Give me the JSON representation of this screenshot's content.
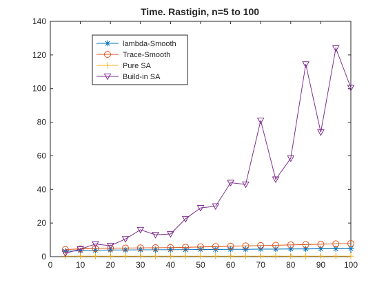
{
  "chart_data": {
    "type": "line",
    "title": "Time. Rastigin, n=5 to 100",
    "xlabel": "",
    "ylabel": "",
    "xlim": [
      0,
      100
    ],
    "ylim": [
      0,
      140
    ],
    "xticks": [
      "0",
      "10",
      "20",
      "30",
      "40",
      "50",
      "60",
      "70",
      "80",
      "90",
      "100"
    ],
    "yticks": [
      "0",
      "20",
      "40",
      "60",
      "80",
      "100",
      "120",
      "140"
    ],
    "x": [
      5,
      10,
      15,
      20,
      25,
      30,
      35,
      40,
      45,
      50,
      55,
      60,
      65,
      70,
      75,
      80,
      85,
      90,
      95,
      100
    ],
    "grid": false,
    "legend_position": "top-left",
    "series": [
      {
        "name": "lambda-Smooth",
        "marker": "asterisk",
        "color": "#0072bd",
        "values": [
          3.2,
          3.5,
          3.8,
          4.0,
          4.0,
          4.1,
          4.1,
          4.2,
          4.2,
          4.3,
          4.3,
          4.4,
          4.4,
          4.5,
          4.5,
          4.6,
          4.6,
          4.7,
          4.7,
          4.8
        ]
      },
      {
        "name": "Trace-Smooth",
        "marker": "circle",
        "color": "#d95319",
        "values": [
          4.3,
          4.6,
          4.9,
          5.0,
          5.1,
          5.2,
          5.3,
          5.4,
          5.6,
          5.8,
          6.0,
          6.2,
          6.4,
          6.6,
          6.8,
          7.0,
          7.2,
          7.4,
          7.6,
          7.8
        ]
      },
      {
        "name": "Pure SA",
        "marker": "plus",
        "color": "#edb120",
        "values": [
          0.3,
          0.3,
          0.3,
          0.3,
          0.3,
          0.3,
          0.3,
          0.3,
          0.3,
          0.3,
          0.3,
          0.3,
          0.3,
          0.3,
          0.3,
          0.3,
          0.3,
          0.3,
          0.3,
          0.3
        ]
      },
      {
        "name": "Build-in SA",
        "marker": "triangle-down",
        "color": "#7e2f8e",
        "values": [
          2.0,
          4.5,
          7.5,
          6.5,
          10.5,
          16.0,
          13.0,
          13.5,
          22.5,
          29.0,
          30.0,
          44.0,
          43.0,
          81.0,
          46.0,
          58.5,
          114.5,
          74.0,
          124.0,
          100.5
        ]
      }
    ]
  }
}
